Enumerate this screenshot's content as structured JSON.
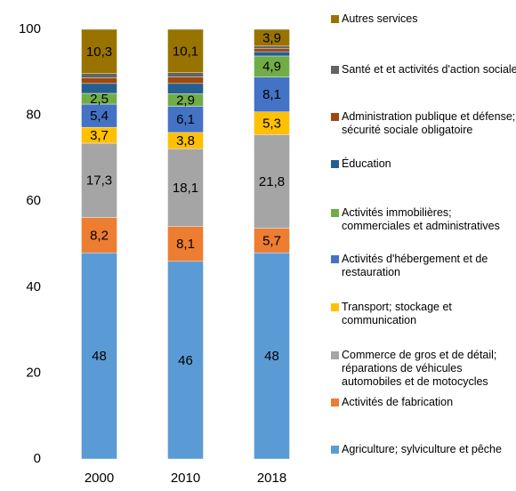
{
  "chart_data": {
    "type": "stacked-bar",
    "categories": [
      "2000",
      "2010",
      "2018"
    ],
    "ylim": [
      0,
      100
    ],
    "yticks": [
      0,
      20,
      40,
      60,
      80,
      100
    ],
    "grid": false,
    "series": [
      {
        "name": "Agriculture; sylviculture et pêche",
        "color": "#5b9bd5",
        "values": [
          48,
          46,
          48
        ],
        "value_labels": [
          "48",
          "46",
          "48"
        ]
      },
      {
        "name": "Activités de fabrication",
        "color": "#ed7d31",
        "values": [
          8.2,
          8.1,
          5.7
        ],
        "value_labels": [
          "8,2",
          "8,1",
          "5,7"
        ]
      },
      {
        "name": "Commerce de gros et de détail; réparations de véhicules automobiles et de motocycles",
        "color": "#a5a5a5",
        "values": [
          17.3,
          18.1,
          21.8
        ],
        "value_labels": [
          "17,3",
          "18,1",
          "21,8"
        ]
      },
      {
        "name": "Transport; stockage et communication",
        "color": "#ffc000",
        "values": [
          3.7,
          3.8,
          5.3
        ],
        "value_labels": [
          "3,7",
          "3,8",
          "5,3"
        ]
      },
      {
        "name": "Activités d'hébergement et de restauration",
        "color": "#4472c4",
        "values": [
          5.4,
          6.1,
          8.1
        ],
        "value_labels": [
          "5,4",
          "6,1",
          "8,1"
        ]
      },
      {
        "name": "Activités immobilières; commerciales et administratives",
        "color": "#70ad47",
        "values": [
          2.5,
          2.9,
          4.9
        ],
        "value_labels": [
          "2,5",
          "2,9",
          "4,9"
        ]
      },
      {
        "name": "Éducation",
        "color": "#255e91",
        "values": [
          2.3,
          2.4,
          1.0
        ]
      },
      {
        "name": "Administration publique et défense; sécurité sociale obligatoire",
        "color": "#9e480e",
        "values": [
          1.3,
          1.5,
          0.7
        ]
      },
      {
        "name": "Santé et et activités d'action sociale",
        "color": "#636363",
        "values": [
          1.0,
          1.0,
          0.6
        ]
      },
      {
        "name": "Autres services",
        "color": "#997300",
        "values": [
          10.3,
          10.1,
          3.9
        ],
        "value_labels": [
          "10,3",
          "10,1",
          "3,9"
        ]
      }
    ]
  }
}
